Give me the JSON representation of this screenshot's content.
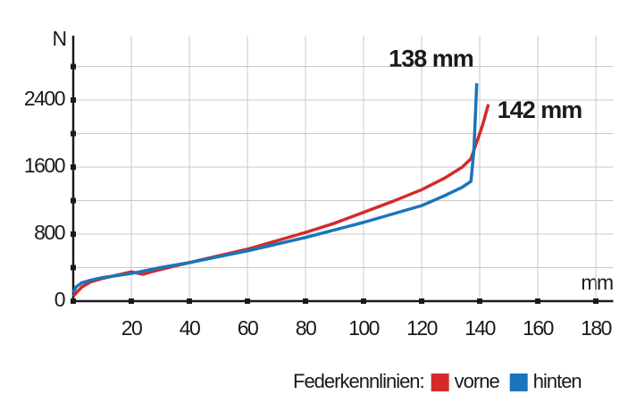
{
  "chart_data": {
    "type": "line",
    "x_label": "mm",
    "y_label": "N",
    "xlim": [
      0,
      186
    ],
    "ylim": [
      0,
      3170
    ],
    "xticks": [
      20,
      40,
      60,
      80,
      100,
      120,
      140,
      160,
      180
    ],
    "yticks": [
      0,
      800,
      1600,
      2400
    ],
    "minor_yticks": [
      400,
      1200,
      2000,
      2800
    ],
    "grid": true,
    "legend_title": "Federkennlinien:",
    "legend": "bottom-right",
    "series": [
      {
        "name": "vorne",
        "color": "#d42a2a",
        "x": [
          0,
          3,
          6,
          10,
          15,
          20,
          24,
          28,
          35,
          40,
          50,
          60,
          70,
          80,
          90,
          100,
          110,
          120,
          128,
          134,
          137,
          139,
          141,
          143
        ],
        "values": [
          60,
          170,
          230,
          270,
          310,
          350,
          320,
          360,
          420,
          460,
          540,
          620,
          720,
          820,
          930,
          1060,
          1190,
          1330,
          1470,
          1600,
          1700,
          1900,
          2100,
          2350
        ],
        "annotation": "142 mm"
      },
      {
        "name": "hinten",
        "color": "#1a75bb",
        "x": [
          0,
          1,
          3,
          6,
          10,
          20,
          30,
          40,
          50,
          60,
          70,
          80,
          90,
          100,
          110,
          120,
          128,
          134,
          137,
          138,
          138.5,
          139
        ],
        "values": [
          100,
          170,
          220,
          250,
          280,
          330,
          400,
          460,
          530,
          600,
          680,
          760,
          850,
          940,
          1040,
          1140,
          1260,
          1360,
          1430,
          1800,
          2200,
          2600
        ],
        "annotation": "138 mm"
      }
    ]
  }
}
